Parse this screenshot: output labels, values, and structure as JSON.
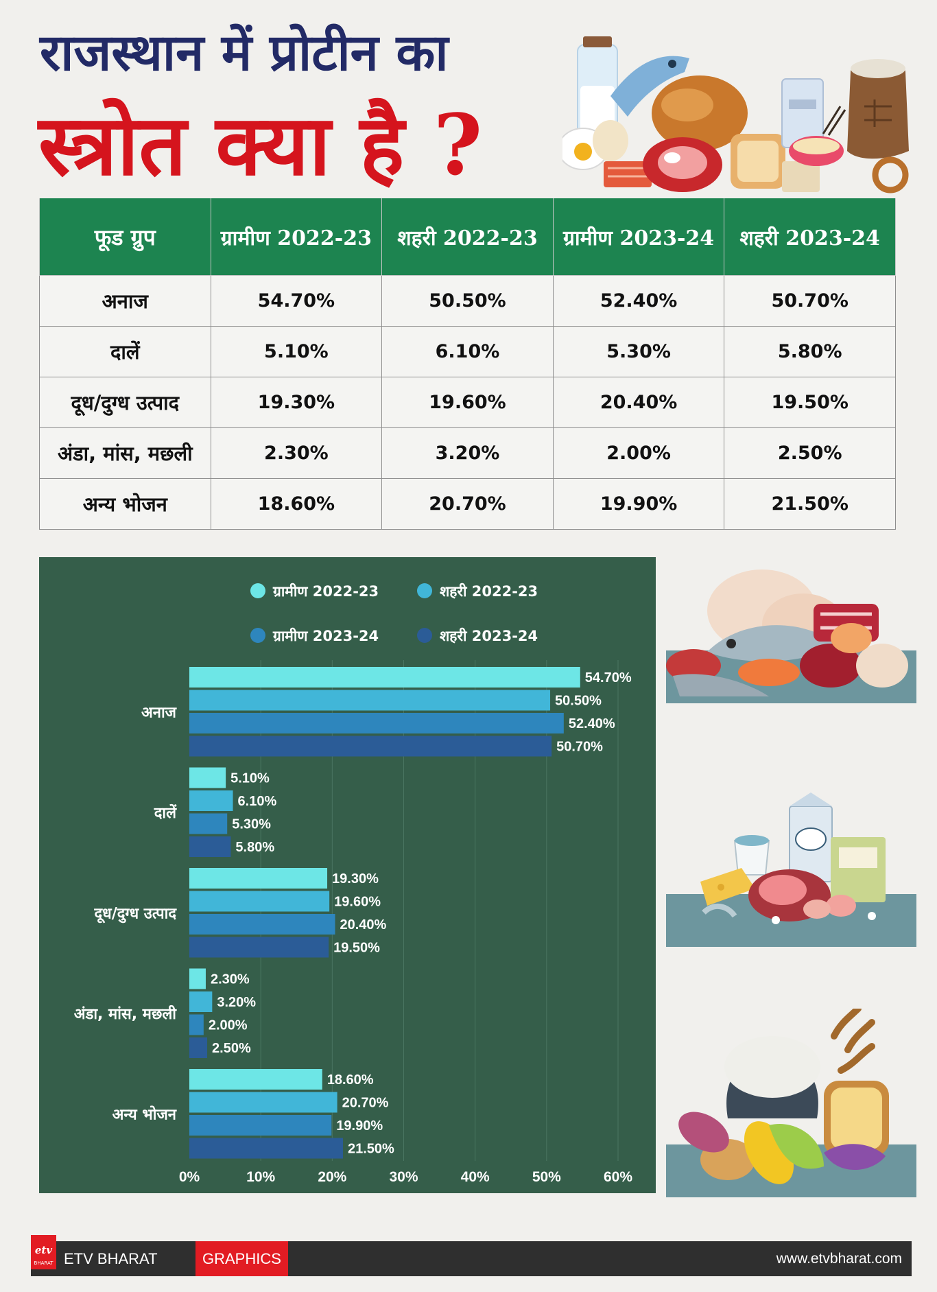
{
  "title": {
    "line1": "राजस्थान में प्रोटीन का",
    "line2": "स्त्रोत क्या है ?"
  },
  "table": {
    "headers": [
      "फूड ग्रुप",
      "ग्रामीण 2022-23",
      "शहरी 2022-23",
      "ग्रामीण 2023-24",
      "शहरी 2023-24"
    ],
    "rows": [
      [
        "अनाज",
        "54.70%",
        "50.50%",
        "52.40%",
        "50.70%"
      ],
      [
        "दालें",
        "5.10%",
        "6.10%",
        "5.30%",
        "5.80%"
      ],
      [
        "दूध/दुग्ध उत्पाद",
        "19.30%",
        "19.60%",
        "20.40%",
        "19.50%"
      ],
      [
        "अंडा, मांस, मछली",
        "2.30%",
        "3.20%",
        "2.00%",
        "2.50%"
      ],
      [
        "अन्य भोजन",
        "18.60%",
        "20.70%",
        "19.90%",
        "21.50%"
      ]
    ]
  },
  "chart_data": {
    "type": "bar",
    "orientation": "horizontal",
    "categories": [
      "अनाज",
      "दालें",
      "दूध/दुग्ध उत्पाद",
      "अंडा, मांस, मछली",
      "अन्य भोजन"
    ],
    "series": [
      {
        "name": "ग्रामीण 2022-23",
        "color": "#6de6e6",
        "values": [
          54.7,
          5.1,
          19.3,
          2.3,
          18.6
        ]
      },
      {
        "name": "शहरी 2022-23",
        "color": "#41b6d8",
        "values": [
          50.5,
          6.1,
          19.6,
          3.2,
          20.7
        ]
      },
      {
        "name": "ग्रामीण 2023-24",
        "color": "#2e86bd",
        "values": [
          52.4,
          5.3,
          20.4,
          2.0,
          19.9
        ]
      },
      {
        "name": "शहरी 2023-24",
        "color": "#2b5c97",
        "values": [
          50.7,
          5.8,
          19.5,
          2.5,
          21.5
        ]
      }
    ],
    "value_format": "percent_2dp",
    "xlim": [
      0,
      60
    ],
    "xticks": [
      "0%",
      "10%",
      "20%",
      "30%",
      "40%",
      "50%",
      "60%"
    ],
    "grid": true,
    "legend_position": "top",
    "background": "#355e4a"
  },
  "footer": {
    "brand": "ETV BHARAT",
    "graphics": "GRAPHICS",
    "url": "www.etvbharat.com",
    "logo_text": "etv",
    "logo_sub": "BHARAT"
  }
}
